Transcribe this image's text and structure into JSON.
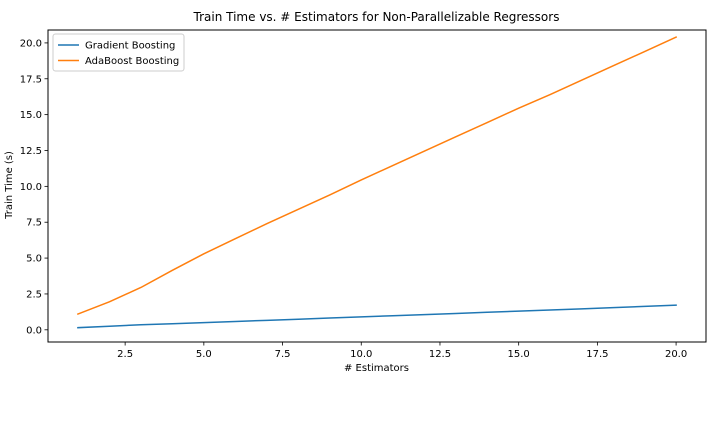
{
  "chart_data": {
    "type": "line",
    "title": "Train Time vs. # Estimators for Non-Parallelizable Regressors",
    "xlabel": "# Estimators",
    "ylabel": "Train Time (s)",
    "xlim": [
      0.05,
      20.95
    ],
    "ylim": [
      -0.85,
      20.9
    ],
    "xticks": [
      2.5,
      5.0,
      7.5,
      10.0,
      12.5,
      15.0,
      17.5,
      20.0
    ],
    "xtick_labels": [
      "2.5",
      "5.0",
      "7.5",
      "10.0",
      "12.5",
      "15.0",
      "17.5",
      "20.0"
    ],
    "yticks": [
      0.0,
      2.5,
      5.0,
      7.5,
      10.0,
      12.5,
      15.0,
      17.5,
      20.0
    ],
    "ytick_labels": [
      "0.0",
      "2.5",
      "5.0",
      "7.5",
      "10.0",
      "12.5",
      "15.0",
      "17.5",
      "20.0"
    ],
    "grid": false,
    "legend_position": "top-left",
    "x": [
      1,
      2,
      3,
      4,
      5,
      6,
      7,
      8,
      9,
      10,
      11,
      12,
      13,
      14,
      15,
      16,
      17,
      18,
      19,
      20
    ],
    "series": [
      {
        "name": "Gradient Boosting",
        "color": "#1f77b4",
        "values": [
          0.15,
          0.25,
          0.35,
          0.42,
          0.5,
          0.58,
          0.66,
          0.74,
          0.82,
          0.9,
          0.98,
          1.06,
          1.14,
          1.22,
          1.3,
          1.38,
          1.46,
          1.55,
          1.63,
          1.72
        ]
      },
      {
        "name": "AdaBoost Boosting",
        "color": "#ff7f0e",
        "values": [
          1.1,
          1.95,
          2.95,
          4.15,
          5.3,
          6.35,
          7.4,
          8.4,
          9.4,
          10.45,
          11.45,
          12.45,
          13.45,
          14.45,
          15.45,
          16.4,
          17.4,
          18.4,
          19.4,
          20.4
        ]
      }
    ]
  }
}
